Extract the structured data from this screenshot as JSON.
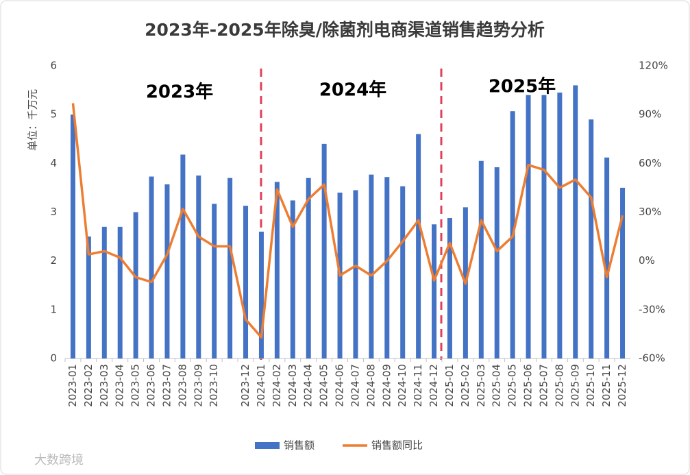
{
  "chart_data": {
    "type": "bar_line",
    "title": "2023年-2025年除臭/除菌剂电商渠道销售趋势分析",
    "y_axis_label": "单位：千万元",
    "annotations": [
      "2023年",
      "2024年",
      "2025年"
    ],
    "watermark": "大数跨境",
    "categories": [
      "2023-01",
      "2023-02",
      "2023-03",
      "2023-04",
      "2023-05",
      "2023-06",
      "2023-07",
      "2023-08",
      "2023-09",
      "2023-10",
      null,
      "2023-12",
      "2024-01",
      "2024-02",
      "2024-03",
      "2024-04",
      "2024-05",
      "2024-06",
      "2024-07",
      "2024-08",
      "2024-09",
      "2024-10",
      "2024-11",
      "2024-12",
      "2025-01",
      "2025-02",
      "2025-03",
      "2025-04",
      "2025-05",
      "2025-06",
      "2025-07",
      "2025-08",
      "2025-09",
      "2025-10",
      "2025-11",
      "2025-12"
    ],
    "series": [
      {
        "name": "销售额",
        "color": "#4472c4",
        "axis": "y",
        "values": [
          5.0,
          2.5,
          2.7,
          2.7,
          3.0,
          3.73,
          3.57,
          4.18,
          3.75,
          3.17,
          3.7,
          3.13,
          2.6,
          3.62,
          3.24,
          3.7,
          4.4,
          3.4,
          3.45,
          3.77,
          3.72,
          3.53,
          4.6,
          2.75,
          2.88,
          3.1,
          4.05,
          3.92,
          5.07,
          5.4,
          5.4,
          5.45,
          5.6,
          4.9,
          4.12,
          3.5
        ]
      },
      {
        "name": "销售额同比",
        "color": "#ed7d31",
        "axis": "y2",
        "values": [
          97,
          4,
          6,
          2,
          -10,
          -13,
          4,
          32,
          15,
          9,
          9,
          -36,
          -47,
          44,
          21,
          38,
          47,
          -9,
          -3,
          -9,
          0,
          12,
          25,
          -12,
          11,
          -14,
          25,
          6,
          15,
          59,
          56,
          45,
          50,
          39,
          -10,
          28
        ]
      }
    ],
    "ylim": [
      0,
      6
    ],
    "yticks": [
      0,
      1,
      2,
      3,
      4,
      5,
      6
    ],
    "y2lim": [
      -60,
      120
    ],
    "y2ticks": [
      {
        "value": -60,
        "label": "-60%"
      },
      {
        "value": -30,
        "label": "-30%"
      },
      {
        "value": 0,
        "label": "0%"
      },
      {
        "value": 30,
        "label": "30%"
      },
      {
        "value": 60,
        "label": "60%"
      },
      {
        "value": 90,
        "label": "90%"
      },
      {
        "value": 120,
        "label": "120%"
      }
    ]
  }
}
